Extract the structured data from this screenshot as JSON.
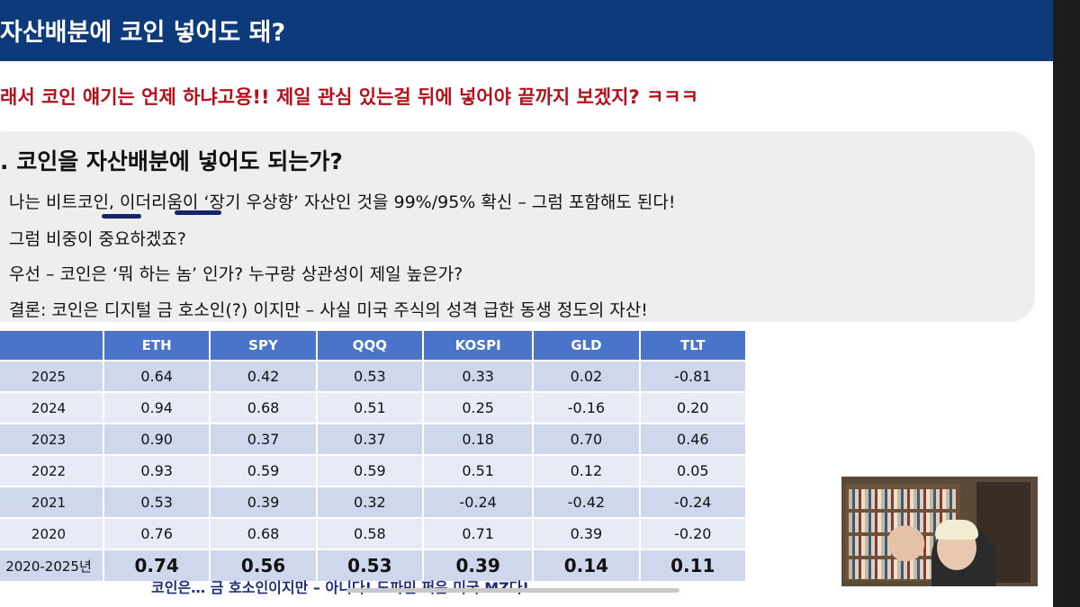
{
  "header": {
    "title": "자산배분에 코인 넣어도 돼?"
  },
  "intro_line": "래서 코인 얘기는 언제 하냐고용!! 제일 관심 있는걸 뒤에 넣어야 끝까지 보겠지? ㅋㅋㅋ",
  "section": {
    "title": ". 코인을 자산배분에 넣어도 되는가?",
    "bullets": [
      "나는 비트코인, 이더리움이  ‘장기 우상향’ 자산인 것을 99%/95% 확신 – 그럼 포함해도 된다!",
      "그럼 비중이 중요하겠죠?",
      "우선 – 코인은  ‘뭐 하는 놈’ 인가? 누구랑 상관성이 제일 높은가?",
      "결론: 코인은 디지털 금 호소인(?) 이지만 – 사실 미국 주식의 성격 급한 동생 정도의 자산!"
    ]
  },
  "table": {
    "columns": [
      "",
      "ETH",
      "SPY",
      "QQQ",
      "KOSPI",
      "GLD",
      "TLT"
    ],
    "rows": [
      [
        "2025",
        "0.64",
        "0.42",
        "0.53",
        "0.33",
        "0.02",
        "-0.81"
      ],
      [
        "2024",
        "0.94",
        "0.68",
        "0.51",
        "0.25",
        "-0.16",
        "0.20"
      ],
      [
        "2023",
        "0.90",
        "0.37",
        "0.37",
        "0.18",
        "0.70",
        "0.46"
      ],
      [
        "2022",
        "0.93",
        "0.59",
        "0.59",
        "0.51",
        "0.12",
        "0.05"
      ],
      [
        "2021",
        "0.53",
        "0.39",
        "0.32",
        "-0.24",
        "-0.42",
        "-0.24"
      ],
      [
        "2020",
        "0.76",
        "0.68",
        "0.58",
        "0.71",
        "0.39",
        "-0.20"
      ]
    ],
    "average_row": [
      "2020-2025년",
      "0.74",
      "0.56",
      "0.53",
      "0.39",
      "0.14",
      "0.11"
    ]
  },
  "caption": "코인은… 금 호소인이지만 – 아니다! 도파민 쩌은 미국 MZ다!",
  "colors": {
    "header": "#0d3a7a",
    "accent_red": "#b3121c",
    "table_header": "#4a74c9"
  },
  "icons": {
    "webcam": "presenter-webcam-feed"
  }
}
